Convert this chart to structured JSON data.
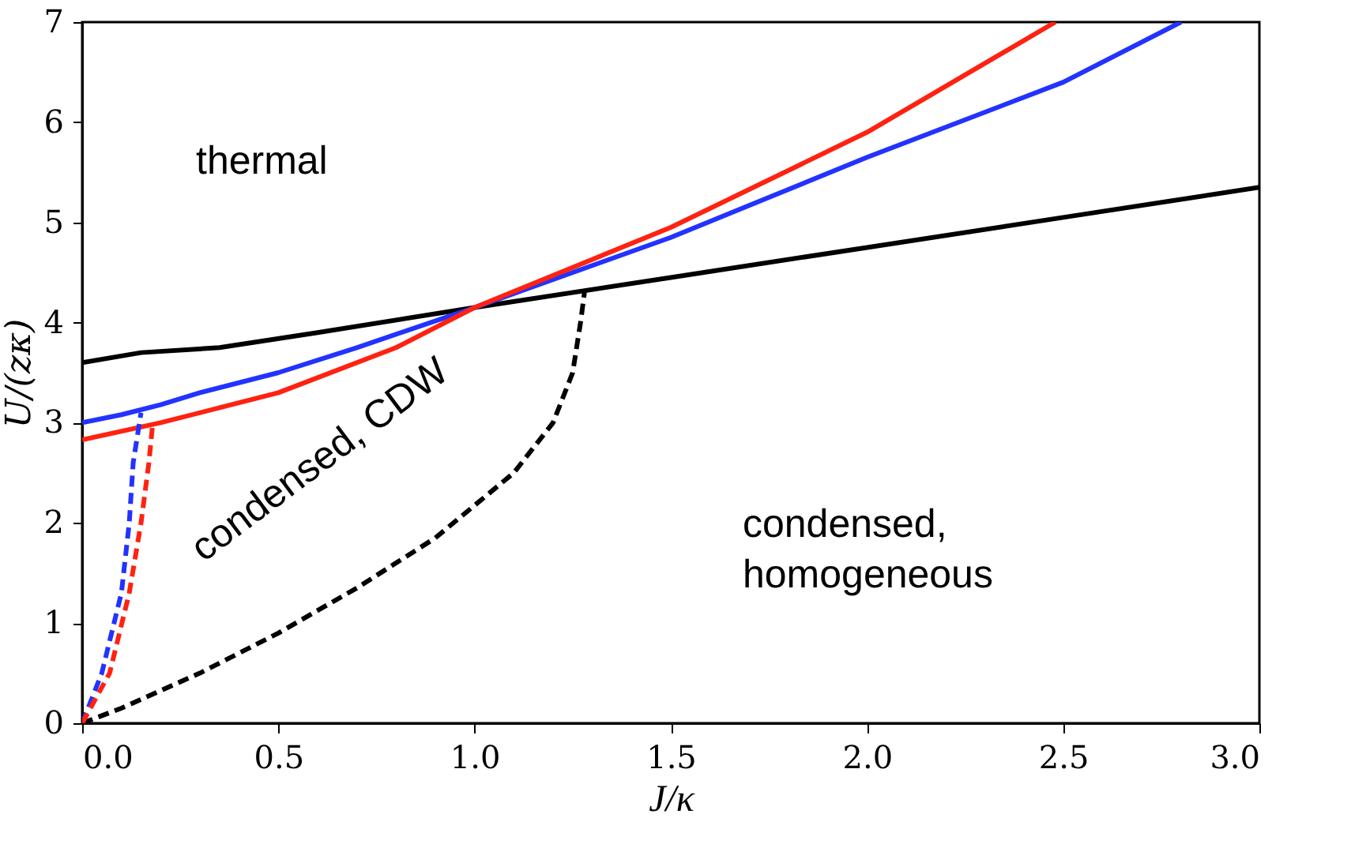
{
  "chart_data": {
    "type": "line",
    "xlabel": "J/κ",
    "ylabel": "U/(zκ)",
    "xlim": [
      0,
      3
    ],
    "ylim": [
      0,
      7
    ],
    "xticks": [
      {
        "value": 0,
        "label": "0.0"
      },
      {
        "value": 0.5,
        "label": "0.5"
      },
      {
        "value": 1,
        "label": "1.0"
      },
      {
        "value": 1.5,
        "label": "1.5"
      },
      {
        "value": 2,
        "label": "2.0"
      },
      {
        "value": 2.5,
        "label": "2.5"
      },
      {
        "value": 3,
        "label": "3.0"
      }
    ],
    "yticks": [
      0,
      1,
      2,
      3,
      4,
      5,
      6,
      7
    ],
    "grid": false,
    "annotations": [
      "thermal",
      "condensed, CDW",
      "condensed, homogeneous"
    ],
    "series": [
      {
        "color": "#000000",
        "line_style": "solid",
        "x": [
          0,
          0.15,
          0.35,
          0.6,
          1.0,
          1.5,
          2.0,
          2.5,
          3.0
        ],
        "values": [
          3.6,
          3.7,
          3.75,
          3.9,
          4.15,
          4.45,
          4.75,
          5.05,
          5.35
        ]
      },
      {
        "color": "#2233ff",
        "line_style": "solid",
        "x": [
          0,
          0.1,
          0.2,
          0.3,
          0.5,
          0.7,
          1.0,
          1.5,
          2.0,
          2.5,
          2.8
        ],
        "values": [
          3.0,
          3.08,
          3.18,
          3.3,
          3.5,
          3.75,
          4.15,
          4.85,
          5.65,
          6.4,
          7.0
        ]
      },
      {
        "color": "#ff2211",
        "line_style": "solid",
        "x": [
          0,
          0.2,
          0.5,
          0.8,
          1.0,
          1.5,
          2.0,
          2.48
        ],
        "values": [
          2.83,
          3.0,
          3.3,
          3.75,
          4.15,
          4.95,
          5.9,
          7.0
        ]
      },
      {
        "color": "#000000",
        "line_style": "dashed",
        "x": [
          0,
          0.1,
          0.3,
          0.5,
          0.7,
          0.9,
          1.1,
          1.2,
          1.25,
          1.27,
          1.28
        ],
        "values": [
          0,
          0.15,
          0.5,
          0.9,
          1.35,
          1.85,
          2.5,
          3.0,
          3.5,
          4.0,
          4.3
        ]
      },
      {
        "color": "#2233ff",
        "line_style": "dashed",
        "x": [
          0,
          0.05,
          0.1,
          0.12,
          0.13,
          0.15
        ],
        "values": [
          0,
          0.5,
          1.3,
          2.0,
          2.6,
          3.1
        ]
      },
      {
        "color": "#ff2211",
        "line_style": "dashed",
        "x": [
          0,
          0.07,
          0.12,
          0.15,
          0.17,
          0.18
        ],
        "values": [
          0,
          0.5,
          1.3,
          2.0,
          2.6,
          3.0
        ]
      }
    ]
  }
}
